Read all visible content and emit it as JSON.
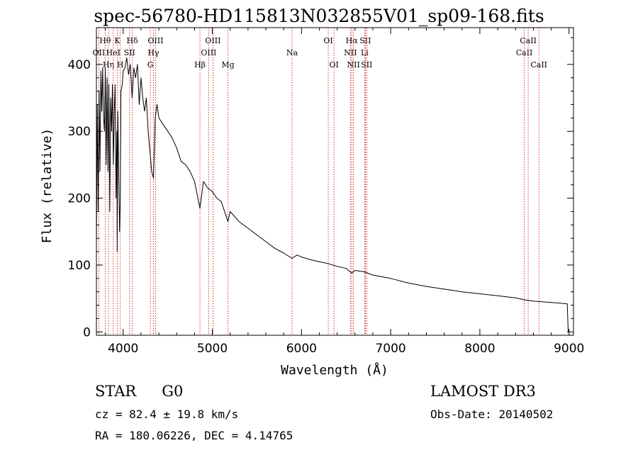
{
  "chart_data": {
    "type": "line",
    "title": "spec-56780-HD115813N032855V01_sp09-168.fits",
    "xlabel": "Wavelength (Å)",
    "ylabel": "Flux (relative)",
    "xlim": [
      3700,
      9050
    ],
    "ylim": [
      -5,
      455
    ],
    "xticks": [
      4000,
      5000,
      6000,
      7000,
      8000,
      9000
    ],
    "yticks": [
      0,
      100,
      200,
      300,
      400
    ],
    "series": [
      {
        "name": "flux",
        "x": [
          3700,
          3710,
          3720,
          3730,
          3740,
          3750,
          3760,
          3770,
          3780,
          3790,
          3800,
          3810,
          3820,
          3830,
          3840,
          3850,
          3860,
          3870,
          3880,
          3890,
          3900,
          3910,
          3920,
          3930,
          3933,
          3940,
          3950,
          3960,
          3968,
          3975,
          3990,
          4000,
          4020,
          4040,
          4060,
          4080,
          4101,
          4120,
          4140,
          4160,
          4180,
          4200,
          4220,
          4240,
          4260,
          4280,
          4300,
          4320,
          4340,
          4360,
          4380,
          4400,
          4450,
          4500,
          4550,
          4600,
          4650,
          4700,
          4750,
          4800,
          4861,
          4900,
          4950,
          5000,
          5050,
          5100,
          5150,
          5175,
          5200,
          5300,
          5400,
          5500,
          5600,
          5700,
          5800,
          5893,
          5950,
          6000,
          6100,
          6200,
          6300,
          6400,
          6500,
          6563,
          6600,
          6700,
          6800,
          7000,
          7200,
          7400,
          7600,
          7800,
          8000,
          8200,
          8400,
          8500,
          8600,
          8700,
          8800,
          8900,
          8980,
          8990,
          9000
        ],
        "y": [
          130,
          340,
          180,
          360,
          240,
          390,
          330,
          395,
          320,
          300,
          395,
          250,
          380,
          240,
          370,
          180,
          350,
          300,
          370,
          250,
          330,
          370,
          200,
          300,
          120,
          330,
          240,
          150,
          200,
          360,
          370,
          390,
          395,
          410,
          385,
          400,
          350,
          395,
          380,
          400,
          340,
          380,
          350,
          330,
          350,
          300,
          270,
          240,
          230,
          320,
          340,
          320,
          310,
          300,
          290,
          275,
          255,
          250,
          240,
          225,
          185,
          225,
          215,
          210,
          200,
          195,
          175,
          165,
          180,
          165,
          155,
          145,
          135,
          125,
          118,
          110,
          115,
          112,
          108,
          105,
          102,
          98,
          95,
          88,
          92,
          90,
          85,
          80,
          73,
          68,
          64,
          60,
          57,
          54,
          51,
          48,
          46,
          45,
          44,
          43,
          42,
          1,
          0
        ]
      }
    ],
    "spectral_lines": [
      {
        "name": "OII",
        "wavelength": 3727,
        "row": 2
      },
      {
        "name": "Hθ",
        "wavelength": 3798,
        "row": 1
      },
      {
        "name": "Hη",
        "wavelength": 3835,
        "row": 3
      },
      {
        "name": "HeI",
        "wavelength": 3889,
        "row": 2
      },
      {
        "name": "K",
        "wavelength": 3934,
        "row": 1
      },
      {
        "name": "H",
        "wavelength": 3968,
        "row": 3
      },
      {
        "name": "SII",
        "wavelength": 4072,
        "row": 2
      },
      {
        "name": "Hδ",
        "wavelength": 4102,
        "row": 1
      },
      {
        "name": "G",
        "wavelength": 4305,
        "row": 3
      },
      {
        "name": "Hγ",
        "wavelength": 4340,
        "row": 2
      },
      {
        "name": "OIII",
        "wavelength": 4363,
        "row": 1
      },
      {
        "name": "Hβ",
        "wavelength": 4861,
        "row": 3
      },
      {
        "name": "OIII",
        "wavelength": 4959,
        "row": 2
      },
      {
        "name": "OIII",
        "wavelength": 5007,
        "row": 1
      },
      {
        "name": "Mg",
        "wavelength": 5175,
        "row": 3
      },
      {
        "name": "Na",
        "wavelength": 5894,
        "row": 2
      },
      {
        "name": "OI",
        "wavelength": 6300,
        "row": 1
      },
      {
        "name": "OI",
        "wavelength": 6364,
        "row": 3
      },
      {
        "name": "NII",
        "wavelength": 6548,
        "row": 2
      },
      {
        "name": "Hα",
        "wavelength": 6563,
        "row": 1
      },
      {
        "name": "NII",
        "wavelength": 6583,
        "row": 3
      },
      {
        "name": "Li",
        "wavelength": 6708,
        "row": 2
      },
      {
        "name": "SII",
        "wavelength": 6716,
        "row": 1
      },
      {
        "name": "SII",
        "wavelength": 6731,
        "row": 3
      },
      {
        "name": "CaII",
        "wavelength": 8498,
        "row": 2
      },
      {
        "name": "CaII",
        "wavelength": 8542,
        "row": 1
      },
      {
        "name": "CaII",
        "wavelength": 8662,
        "row": 3
      }
    ],
    "line_color": "#cc0000",
    "spectrum_color": "#000000"
  },
  "info": {
    "object_class": "STAR",
    "subclass": "G0",
    "survey": "LAMOST DR3",
    "redshift_text": "cz = 82.4 ± 19.8 km/s",
    "obs_date_text": "Obs-Date: 20140502",
    "coords_text": "RA = 180.06226, DEC =   4.14765"
  }
}
